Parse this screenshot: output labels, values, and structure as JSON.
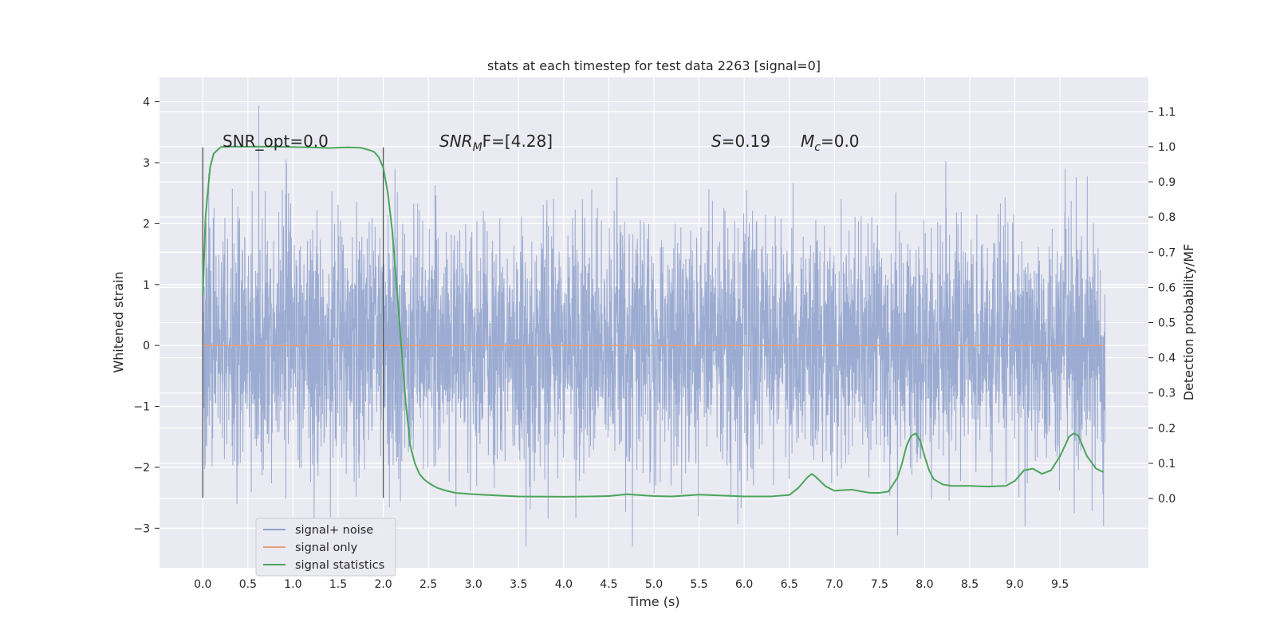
{
  "chart_data": {
    "type": "line",
    "title": "stats at each timestep for test data 2263 [signal=0]",
    "xlabel": "Time (s)",
    "ylabel_left": "Whitened strain",
    "ylabel_right": "Detection probability/MF",
    "xlim": [
      -0.48,
      10.48
    ],
    "ylim_left": [
      -3.65,
      4.4
    ],
    "ylim_right": [
      -0.197,
      1.197
    ],
    "x_ticks": [
      "0.0",
      "0.5",
      "1.0",
      "1.5",
      "2.0",
      "2.5",
      "3.0",
      "3.5",
      "4.0",
      "4.5",
      "5.0",
      "5.5",
      "6.0",
      "6.5",
      "7.0",
      "7.5",
      "8.0",
      "8.5",
      "9.0",
      "9.5"
    ],
    "y_left_ticks": [
      "−3",
      "−2",
      "−1",
      "0",
      "1",
      "2",
      "3",
      "4"
    ],
    "y_right_ticks": [
      "0.0",
      "0.1",
      "0.2",
      "0.3",
      "0.4",
      "0.5",
      "0.6",
      "0.7",
      "0.8",
      "0.9",
      "1.0",
      "1.1"
    ],
    "grid": true,
    "legend_placement": "lower-left",
    "annotations": {
      "snr_opt": "SNR_opt=0.0",
      "snr_mf_base": "SNR",
      "snr_mf_sub": "M",
      "snr_mf_rest": "F=[4.28]",
      "s_italic": "S",
      "s_value": "=0.19",
      "mc_base": "M",
      "mc_sub": "c",
      "mc_value": "=0.0"
    },
    "window_markers_x": [
      0.0,
      2.0
    ],
    "window_marker_range_left": [
      -2.5,
      3.25
    ],
    "series": [
      {
        "name": "signal+ noise",
        "color": "#8da0cb",
        "axis": "left",
        "kind": "noise",
        "x_range": [
          0.0,
          10.0
        ],
        "amplitude_std": 1.0,
        "min": -3.3,
        "max": 4.05
      },
      {
        "name": "signal only",
        "color": "#e8a07c",
        "axis": "left",
        "x": [
          0.0,
          10.0
        ],
        "y": [
          0.0,
          0.0
        ]
      },
      {
        "name": "signal statistics",
        "color": "#4aa55a",
        "axis": "right",
        "x": [
          0.0,
          0.03,
          0.08,
          0.12,
          0.16,
          0.2,
          0.3,
          0.5,
          0.8,
          1.0,
          1.2,
          1.4,
          1.6,
          1.75,
          1.85,
          1.9,
          1.95,
          2.0,
          2.05,
          2.1,
          2.15,
          2.2,
          2.25,
          2.3,
          2.35,
          2.4,
          2.45,
          2.5,
          2.55,
          2.6,
          2.7,
          2.8,
          3.0,
          3.3,
          3.5,
          4.0,
          4.3,
          4.5,
          4.7,
          5.0,
          5.2,
          5.5,
          5.7,
          6.0,
          6.3,
          6.5,
          6.6,
          6.7,
          6.75,
          6.8,
          6.9,
          7.0,
          7.1,
          7.2,
          7.3,
          7.4,
          7.5,
          7.6,
          7.7,
          7.75,
          7.8,
          7.85,
          7.9,
          7.95,
          8.0,
          8.05,
          8.1,
          8.2,
          8.3,
          8.5,
          8.7,
          8.9,
          9.0,
          9.1,
          9.2,
          9.3,
          9.4,
          9.5,
          9.6,
          9.65,
          9.7,
          9.75,
          9.8,
          9.9,
          9.98
        ],
        "y": [
          0.58,
          0.8,
          0.94,
          0.98,
          0.99,
          0.999,
          1.0,
          1.0,
          1.0,
          0.999,
          0.998,
          0.996,
          0.998,
          0.997,
          0.99,
          0.985,
          0.97,
          0.94,
          0.87,
          0.76,
          0.6,
          0.43,
          0.27,
          0.15,
          0.1,
          0.07,
          0.055,
          0.045,
          0.037,
          0.03,
          0.022,
          0.016,
          0.012,
          0.008,
          0.006,
          0.005,
          0.006,
          0.007,
          0.012,
          0.007,
          0.006,
          0.011,
          0.009,
          0.006,
          0.006,
          0.01,
          0.03,
          0.06,
          0.07,
          0.06,
          0.035,
          0.022,
          0.024,
          0.025,
          0.02,
          0.016,
          0.016,
          0.02,
          0.06,
          0.1,
          0.15,
          0.178,
          0.185,
          0.165,
          0.12,
          0.08,
          0.055,
          0.04,
          0.036,
          0.036,
          0.034,
          0.036,
          0.05,
          0.08,
          0.085,
          0.07,
          0.08,
          0.12,
          0.175,
          0.185,
          0.18,
          0.15,
          0.12,
          0.085,
          0.075
        ]
      }
    ]
  }
}
